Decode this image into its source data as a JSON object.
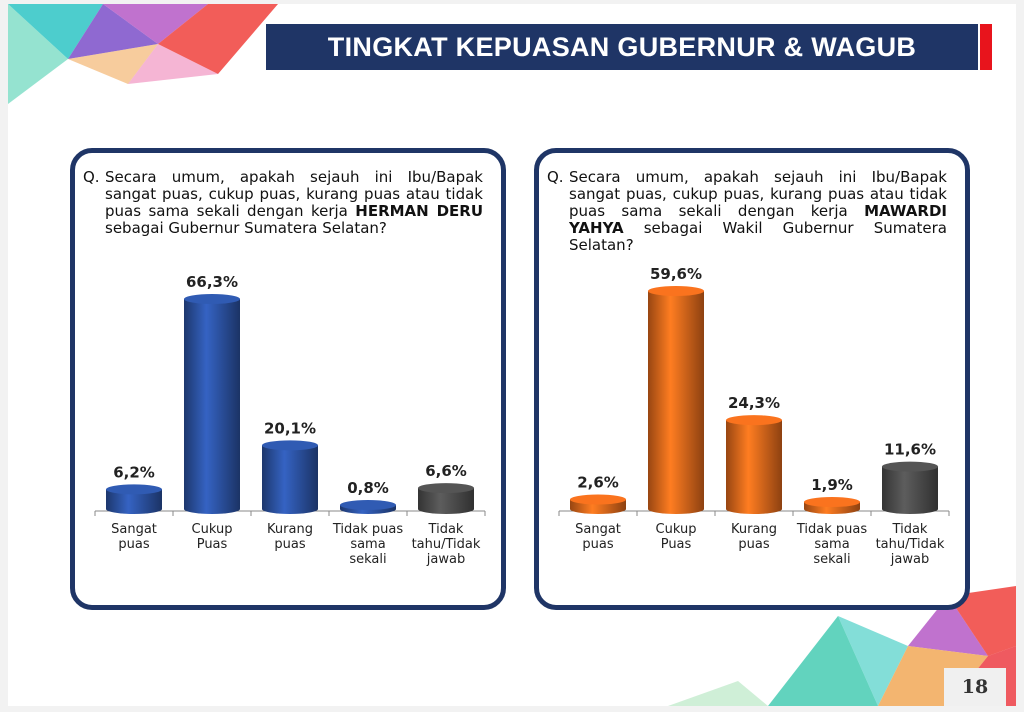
{
  "header": {
    "title": "TINGKAT KEPUASAN GUBERNUR & WAGUB"
  },
  "colors": {
    "navy": "#1f3566",
    "accent_red": "#e8141c",
    "blue_bar": "#2a4f9c",
    "orange_bar": "#d9641a",
    "gray_bar": "#4a4a4a"
  },
  "left_panel": {
    "q_prefix": "Q.",
    "question_pre": "Secara umum, apakah sejauh ini Ibu/Bapak sangat puas, cukup puas, kurang puas atau tidak puas sama sekali dengan kerja ",
    "question_name": "HERMAN DERU",
    "question_post": " sebagai Gubernur Sumatera Selatan?"
  },
  "right_panel": {
    "q_prefix": "Q.",
    "question_pre": "Secara umum, apakah sejauh ini Ibu/Bapak sangat puas, cukup puas, kurang puas atau tidak puas sama sekali dengan kerja ",
    "question_name": "MAWARDI YAHYA",
    "question_post": " sebagai Wakil Gubernur Sumatera Selatan?"
  },
  "chart_data": [
    {
      "type": "bar",
      "categories": [
        "Sangat puas",
        "Cukup Puas",
        "Kurang puas",
        "Tidak puas sama sekali",
        "Tidak tahu/Tidak jawab"
      ],
      "category_lines": [
        [
          "Sangat",
          "puas"
        ],
        [
          "Cukup",
          "Puas"
        ],
        [
          "Kurang",
          "puas"
        ],
        [
          "Tidak puas",
          "sama",
          "sekali"
        ],
        [
          "Tidak",
          "tahu/Tidak",
          "jawab"
        ]
      ],
      "values": [
        6.2,
        66.3,
        20.1,
        0.8,
        6.6
      ],
      "value_labels": [
        "6,2%",
        "66,3%",
        "20,1%",
        "0,8%",
        "6,6%"
      ],
      "bar_colors": [
        "#2a4f9c",
        "#2a4f9c",
        "#2a4f9c",
        "#2a4f9c",
        "#4a4a4a"
      ],
      "ylim": [
        0,
        66.3
      ]
    },
    {
      "type": "bar",
      "categories": [
        "Sangat puas",
        "Cukup Puas",
        "Kurang puas",
        "Tidak puas sama sekali",
        "Tidak tahu/Tidak jawab"
      ],
      "category_lines": [
        [
          "Sangat",
          "puas"
        ],
        [
          "Cukup",
          "Puas"
        ],
        [
          "Kurang",
          "puas"
        ],
        [
          "Tidak puas",
          "sama",
          "sekali"
        ],
        [
          "Tidak",
          "tahu/Tidak",
          "jawab"
        ]
      ],
      "values": [
        2.6,
        59.6,
        24.3,
        1.9,
        11.6
      ],
      "value_labels": [
        "2,6%",
        "59,6%",
        "24,3%",
        "1,9%",
        "11,6%"
      ],
      "bar_colors": [
        "#d9641a",
        "#d9641a",
        "#d9641a",
        "#d9641a",
        "#4a4a4a"
      ],
      "ylim": [
        0,
        59.6
      ]
    }
  ],
  "footer": {
    "page_number": "18"
  }
}
